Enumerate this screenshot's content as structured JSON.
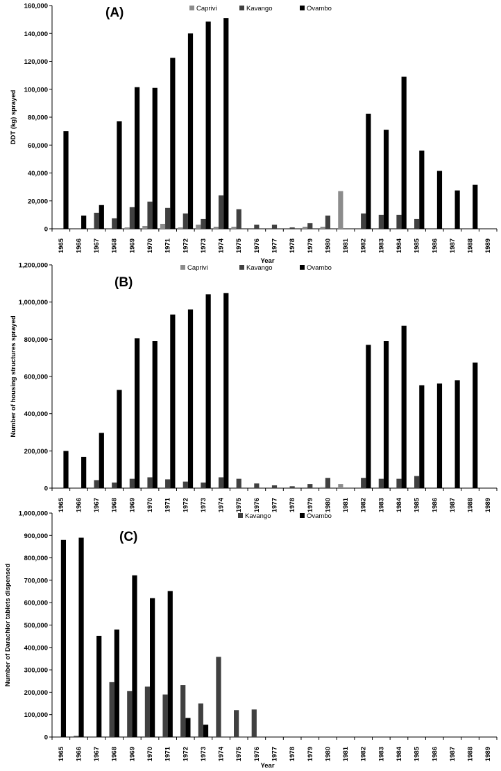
{
  "colors": {
    "Caprivi": "#8c8c8c",
    "Kavango": "#404040",
    "Ovambo": "#000000"
  },
  "chart_data": [
    {
      "type": "bar",
      "panel_label": "(A)",
      "ylabel": "DDT (kg) sprayed",
      "xlabel": "Year",
      "ylim": [
        0,
        160000
      ],
      "yticks": [
        "0",
        "20,000",
        "40,000",
        "60,000",
        "80,000",
        "100,000",
        "120,000",
        "140,000",
        "160,000"
      ],
      "categories": [
        "1965",
        "1966",
        "1967",
        "1968",
        "1969",
        "1970",
        "1971",
        "1972",
        "1973",
        "1974",
        "1975",
        "1976",
        "1977",
        "1978",
        "1979",
        "1980",
        "1981",
        "1982",
        "1983",
        "1984",
        "1985",
        "1986",
        "1987",
        "1988",
        "1989"
      ],
      "legend": [
        "Caprivi",
        "Kavango",
        "Ovambo"
      ],
      "series": [
        {
          "name": "Caprivi",
          "values": [
            0,
            0,
            0,
            0,
            1000,
            2000,
            3500,
            1000,
            3000,
            1500,
            1500,
            0,
            0,
            0,
            1500,
            1500,
            27000,
            0,
            0,
            0,
            0,
            0,
            0,
            0,
            0
          ]
        },
        {
          "name": "Kavango",
          "values": [
            0,
            0,
            11500,
            7500,
            15500,
            19500,
            15000,
            11000,
            7000,
            24000,
            14000,
            3000,
            3000,
            1000,
            4000,
            9500,
            0,
            11000,
            10000,
            10000,
            7000,
            0,
            0,
            0,
            0
          ]
        },
        {
          "name": "Ovambo",
          "values": [
            70000,
            9500,
            17000,
            77000,
            101500,
            101000,
            122500,
            140000,
            148500,
            151000,
            0,
            0,
            0,
            0,
            0,
            0,
            0,
            82500,
            71000,
            109000,
            56000,
            41500,
            27500,
            31500,
            0
          ]
        }
      ]
    },
    {
      "type": "bar",
      "panel_label": "(B)",
      "ylabel": "Number of housing structures sprayed",
      "xlabel": "",
      "ylim": [
        0,
        1200000
      ],
      "yticks": [
        "0",
        "200,000",
        "400,000",
        "600,000",
        "800,000",
        "1,000,000",
        "1,200,000"
      ],
      "categories": [
        "1965",
        "1966",
        "1967",
        "1968",
        "1969",
        "1970",
        "1971",
        "1972",
        "1973",
        "1974",
        "1975",
        "1976",
        "1977",
        "1978",
        "1979",
        "1980",
        "1981",
        "1982",
        "1983",
        "1984",
        "1985",
        "1986",
        "1987",
        "1988",
        "1989"
      ],
      "legend": [
        "Caprivi",
        "Kavango",
        "Ovambo"
      ],
      "series": [
        {
          "name": "Caprivi",
          "values": [
            0,
            0,
            0,
            0,
            0,
            0,
            0,
            0,
            0,
            0,
            0,
            0,
            0,
            0,
            0,
            5000,
            22000,
            0,
            0,
            0,
            0,
            0,
            0,
            0,
            0
          ]
        },
        {
          "name": "Kavango",
          "values": [
            0,
            0,
            43000,
            30000,
            50000,
            58000,
            47000,
            35000,
            30000,
            58000,
            50000,
            25000,
            15000,
            10000,
            22000,
            55000,
            0,
            55000,
            50000,
            50000,
            65000,
            0,
            0,
            0,
            0
          ]
        },
        {
          "name": "Ovambo",
          "values": [
            200000,
            168000,
            297000,
            528000,
            805000,
            790000,
            933000,
            960000,
            1042000,
            1048000,
            0,
            0,
            0,
            0,
            0,
            0,
            0,
            770000,
            790000,
            873000,
            553000,
            562000,
            580000,
            675000,
            0
          ]
        }
      ]
    },
    {
      "type": "bar",
      "panel_label": "(C)",
      "ylabel": "Number of Darachlor tablets dispensed",
      "xlabel": "Year",
      "ylim": [
        0,
        1000000
      ],
      "yticks": [
        "0",
        "100,000",
        "200,000",
        "300,000",
        "400,000",
        "500,000",
        "600,000",
        "700,000",
        "800,000",
        "900,000",
        "1,000,000"
      ],
      "categories": [
        "1965",
        "1966",
        "1967",
        "1968",
        "1969",
        "1970",
        "1971",
        "1972",
        "1973",
        "1974",
        "1975",
        "1976",
        "1977",
        "1978",
        "1979",
        "1980",
        "1981",
        "1982",
        "1983",
        "1984",
        "1985",
        "1986",
        "1987",
        "1988",
        "1989"
      ],
      "legend": [
        "Kavango",
        "Ovambo"
      ],
      "series": [
        {
          "name": "Kavango",
          "values": [
            0,
            5000,
            0,
            245000,
            205000,
            225000,
            190000,
            232000,
            150000,
            358000,
            120000,
            123000,
            0,
            0,
            0,
            0,
            0,
            0,
            0,
            0,
            0,
            0,
            0,
            0,
            0
          ]
        },
        {
          "name": "Ovambo",
          "values": [
            880000,
            890000,
            452000,
            480000,
            722000,
            620000,
            652000,
            85000,
            55000,
            0,
            0,
            0,
            0,
            0,
            0,
            0,
            0,
            0,
            0,
            0,
            0,
            0,
            0,
            0,
            0
          ]
        }
      ]
    }
  ]
}
